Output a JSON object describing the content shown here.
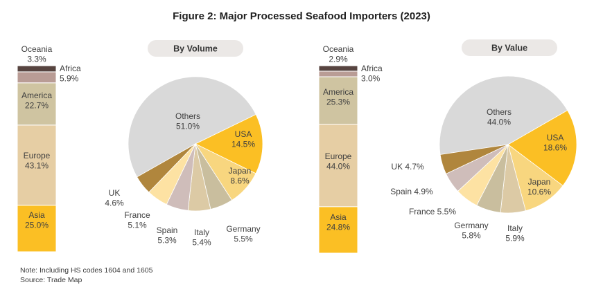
{
  "title": "Figure 2: Major Processed Seafood Importers (2023)",
  "note": "Note: Including HS codes 1604 and 1605",
  "source": "Source: Trade Map",
  "colors": {
    "Asia": "#FBBF24",
    "Europe": "#E6CEA4",
    "America": "#CFC4A1",
    "Africa": "#B99C95",
    "Oceania": "#574440",
    "Others": "#D9D9D9",
    "USA": "#FBBF24",
    "Japan": "#F8D67F",
    "Germany": "#C9BE9E",
    "Italy": "#DCCAA5",
    "Spain": "#CFBDBA",
    "France": "#FDE2A3",
    "UK": "#B0863D"
  },
  "chart_data": [
    {
      "type": "bar",
      "subtype": "stacked-100",
      "panel": "volume",
      "categories": [
        "Asia",
        "Europe",
        "America",
        "Africa",
        "Oceania"
      ],
      "values": [
        25.0,
        43.1,
        22.7,
        5.9,
        3.3
      ],
      "labels": [
        "Asia\n25.0%",
        "Europe\n43.1%",
        "America\n22.7%",
        "Africa\n5.9%",
        "Oceania\n3.3%"
      ]
    },
    {
      "type": "pie",
      "panel": "volume",
      "title": "By Volume",
      "categories": [
        "Others",
        "USA",
        "Japan",
        "Germany",
        "Italy",
        "Spain",
        "France",
        "UK"
      ],
      "values": [
        51.0,
        14.5,
        8.6,
        5.5,
        5.4,
        5.3,
        5.1,
        4.6
      ],
      "labels": [
        "Others\n51.0%",
        "USA\n14.5%",
        "Japan\n8.6%",
        "Germany\n5.5%",
        "Italy\n5.4%",
        "Spain\n5.3%",
        "France\n5.1%",
        "UK\n4.6%"
      ]
    },
    {
      "type": "bar",
      "subtype": "stacked-100",
      "panel": "value",
      "categories": [
        "Asia",
        "Europe",
        "America",
        "Africa",
        "Oceania"
      ],
      "values": [
        24.8,
        44.0,
        25.3,
        3.0,
        2.9
      ],
      "labels": [
        "Asia\n24.8%",
        "Europe\n44.0%",
        "America\n25.3%",
        "Africa\n3.0%",
        "Oceania\n2.9%"
      ]
    },
    {
      "type": "pie",
      "panel": "value",
      "title": "By Value",
      "categories": [
        "Others",
        "USA",
        "Japan",
        "Italy",
        "Germany",
        "France",
        "Spain",
        "UK"
      ],
      "values": [
        44.0,
        18.6,
        10.6,
        5.9,
        5.8,
        5.5,
        4.9,
        4.7
      ],
      "labels": [
        "Others\n44.0%",
        "USA\n18.6%",
        "Japan\n10.6%",
        "Italy\n5.9%",
        "Germany\n5.8%",
        "France 5.5%",
        "Spain 4.9%",
        "UK 4.7%"
      ]
    }
  ]
}
